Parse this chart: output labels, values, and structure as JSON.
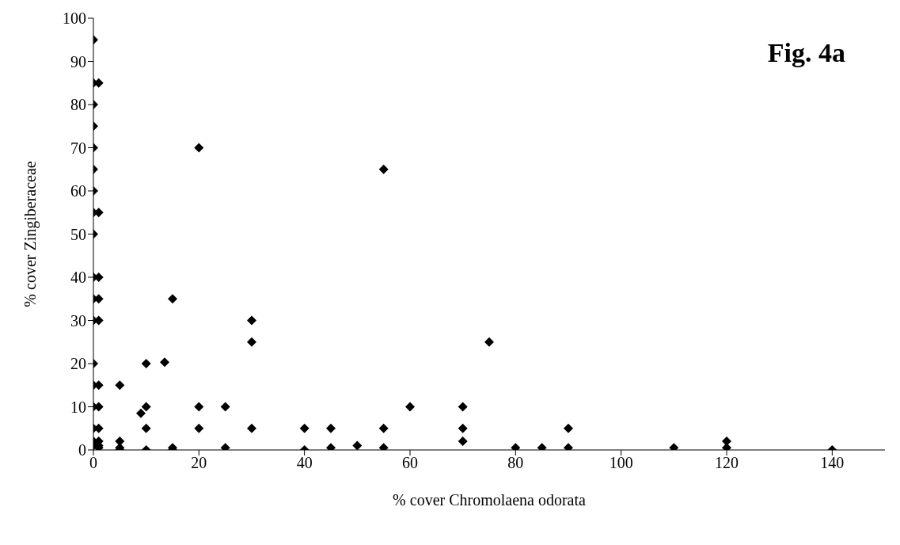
{
  "chart_data": {
    "type": "scatter",
    "xlabel": "% cover Chromolaena odorata",
    "ylabel": "% cover Zingiberaceae",
    "annotations": [
      "Fig. 4a"
    ],
    "x": [
      0,
      0,
      0,
      0,
      0,
      0,
      0,
      0,
      0,
      0,
      0,
      0,
      0,
      0,
      0,
      0,
      0,
      0,
      1,
      1,
      1,
      1,
      1,
      1,
      1,
      1,
      1,
      1,
      1,
      5,
      5,
      5,
      5,
      9,
      10,
      10,
      10,
      10,
      13.5,
      15,
      15,
      15,
      20,
      20,
      20,
      25,
      25,
      30,
      30,
      30,
      40,
      40,
      45,
      45,
      50,
      55,
      55,
      55,
      60,
      70,
      70,
      70,
      75,
      80,
      85,
      90,
      90,
      110,
      120,
      120,
      140
    ],
    "series": [
      {
        "color": "#000000",
        "values": [
          95,
          85,
          80,
          75,
          70,
          65,
          60,
          55,
          50,
          40,
          35,
          30,
          20,
          15,
          10,
          5,
          2,
          1,
          85,
          55,
          40,
          35,
          30,
          15,
          10,
          5,
          2,
          1,
          0.5,
          15,
          2,
          0.5,
          0,
          8.5,
          20,
          10,
          5,
          0,
          20.3,
          35,
          0.5,
          0,
          70,
          10,
          5,
          10,
          0.5,
          30,
          25,
          5,
          5,
          0,
          5,
          0.5,
          1,
          65,
          5,
          0.5,
          10,
          10,
          5,
          2,
          25,
          0.5,
          0.5,
          5,
          0.5,
          0.5,
          2,
          0.5,
          0
        ]
      }
    ],
    "xlim": [
      0,
      150
    ],
    "xticks": [
      0,
      20,
      40,
      60,
      80,
      100,
      120,
      140
    ],
    "ylim": [
      0,
      100
    ],
    "yticks": [
      0,
      10,
      20,
      30,
      40,
      50,
      60,
      70,
      80,
      90,
      100
    ],
    "marker": "diamond",
    "grid": false,
    "legend": false
  }
}
